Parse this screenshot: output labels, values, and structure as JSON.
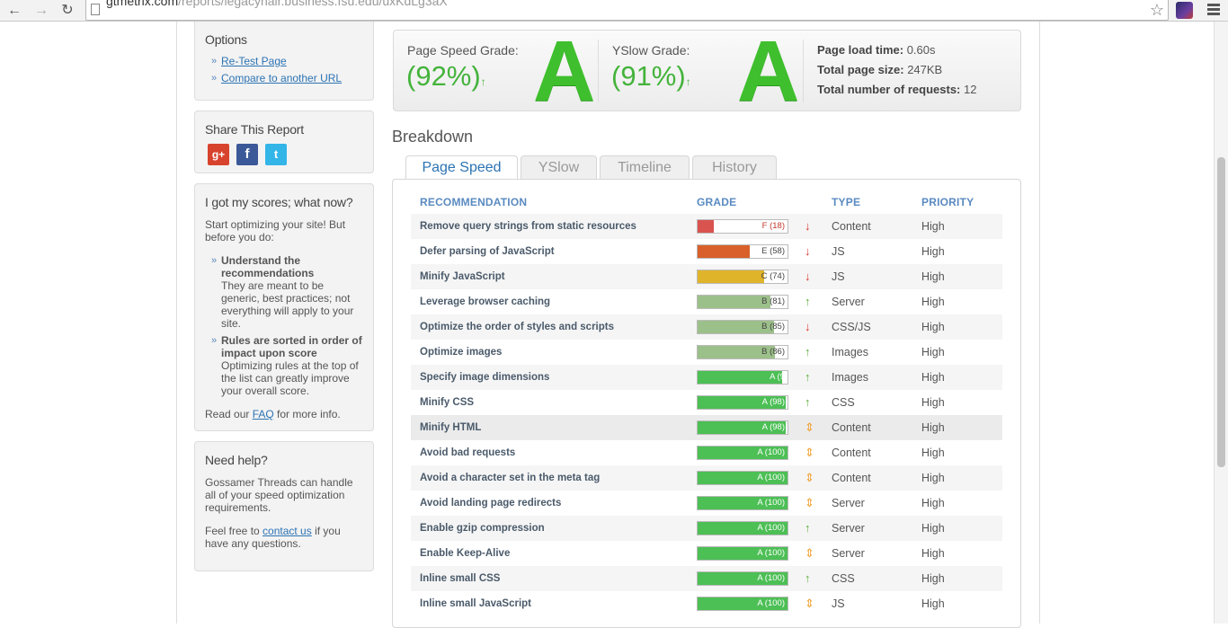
{
  "browser": {
    "url_host": "gtmetrix.com",
    "url_rest": "/reports/legacyhair.business.fsu.edu/uxKdLg3aX"
  },
  "options": {
    "title": "Options",
    "links": [
      "Re-Test Page",
      "Compare to another URL"
    ]
  },
  "share": {
    "title": "Share This Report",
    "icons": [
      "google-plus-icon",
      "facebook-icon",
      "twitter-icon"
    ],
    "colors": {
      "google_plus": "#d8432e",
      "facebook": "#3b5998",
      "twitter": "#33b5e8"
    }
  },
  "scores_help": {
    "title": "I got my scores; what now?",
    "intro": "Start optimizing your site! But before you do:",
    "items": [
      {
        "heading": "Understand the recommendations",
        "text": "They are meant to be generic, best practices; not everything will apply to your site."
      },
      {
        "heading": "Rules are sorted in order of impact upon score",
        "text": "Optimizing rules at the top of the list can greatly improve your overall score."
      }
    ],
    "faq_pre": "Read our ",
    "faq_link": "FAQ",
    "faq_post": " for more info."
  },
  "need_help": {
    "title": "Need help?",
    "text": "Gossamer Threads can handle all of your speed optimization requirements.",
    "contact_pre": "Feel free to ",
    "contact_link": "contact us",
    "contact_post": " if you have any questions."
  },
  "summary": {
    "pagespeed_label": "Page Speed Grade:",
    "pagespeed_pct": "(92%)",
    "pagespeed_letter": "A",
    "yslow_label": "YSlow Grade:",
    "yslow_pct": "(91%)",
    "yslow_letter": "A",
    "load_time_label": "Page load time:",
    "load_time": "0.60s",
    "size_label": "Total page size:",
    "size": "247KB",
    "requests_label": "Total number of requests:",
    "requests": "12",
    "accent": "#44b33b"
  },
  "breakdown_title": "Breakdown",
  "tabs": [
    "Page Speed",
    "YSlow",
    "Timeline",
    "History"
  ],
  "table": {
    "headers": [
      "RECOMMENDATION",
      "GRADE",
      "TYPE",
      "PRIORITY"
    ],
    "rows": [
      {
        "rec": "Remove query strings from static resources",
        "grade": "F (18)",
        "score": 18,
        "trend": "down",
        "type": "Content",
        "priority": "High"
      },
      {
        "rec": "Defer parsing of JavaScript",
        "grade": "E (58)",
        "score": 58,
        "trend": "down",
        "type": "JS",
        "priority": "High"
      },
      {
        "rec": "Minify JavaScript",
        "grade": "C (74)",
        "score": 74,
        "trend": "down",
        "type": "JS",
        "priority": "High"
      },
      {
        "rec": "Leverage browser caching",
        "grade": "B (81)",
        "score": 81,
        "trend": "up",
        "type": "Server",
        "priority": "High"
      },
      {
        "rec": "Optimize the order of styles and scripts",
        "grade": "B (85)",
        "score": 85,
        "trend": "down",
        "type": "CSS/JS",
        "priority": "High"
      },
      {
        "rec": "Optimize images",
        "grade": "B (86)",
        "score": 86,
        "trend": "up",
        "type": "Images",
        "priority": "High"
      },
      {
        "rec": "Specify image dimensions",
        "grade": "A (9",
        "score": 94,
        "trend": "up",
        "type": "Images",
        "priority": "High"
      },
      {
        "rec": "Minify CSS",
        "grade": "A (98)",
        "score": 98,
        "trend": "up",
        "type": "CSS",
        "priority": "High"
      },
      {
        "rec": "Minify HTML",
        "grade": "A (98)",
        "score": 98,
        "trend": "same",
        "type": "Content",
        "priority": "High"
      },
      {
        "rec": "Avoid bad requests",
        "grade": "A (100)",
        "score": 100,
        "trend": "same",
        "type": "Content",
        "priority": "High"
      },
      {
        "rec": "Avoid a character set in the meta tag",
        "grade": "A (100)",
        "score": 100,
        "trend": "same",
        "type": "Content",
        "priority": "High"
      },
      {
        "rec": "Avoid landing page redirects",
        "grade": "A (100)",
        "score": 100,
        "trend": "same",
        "type": "Server",
        "priority": "High"
      },
      {
        "rec": "Enable gzip compression",
        "grade": "A (100)",
        "score": 100,
        "trend": "up",
        "type": "Server",
        "priority": "High"
      },
      {
        "rec": "Enable Keep-Alive",
        "grade": "A (100)",
        "score": 100,
        "trend": "same",
        "type": "Server",
        "priority": "High"
      },
      {
        "rec": "Inline small CSS",
        "grade": "A (100)",
        "score": 100,
        "trend": "up",
        "type": "CSS",
        "priority": "High"
      },
      {
        "rec": "Inline small JavaScript",
        "grade": "A (100)",
        "score": 100,
        "trend": "same",
        "type": "JS",
        "priority": "High"
      }
    ],
    "grade_colors": {
      "F": "#d9534f",
      "E": "#d9602a",
      "C": "#e0b42a",
      "B": "#9cc08a",
      "A": "#4cbf55"
    },
    "trend_colors": {
      "up": "#5cae3c",
      "down": "#d9342b",
      "same": "#f0a030"
    }
  }
}
